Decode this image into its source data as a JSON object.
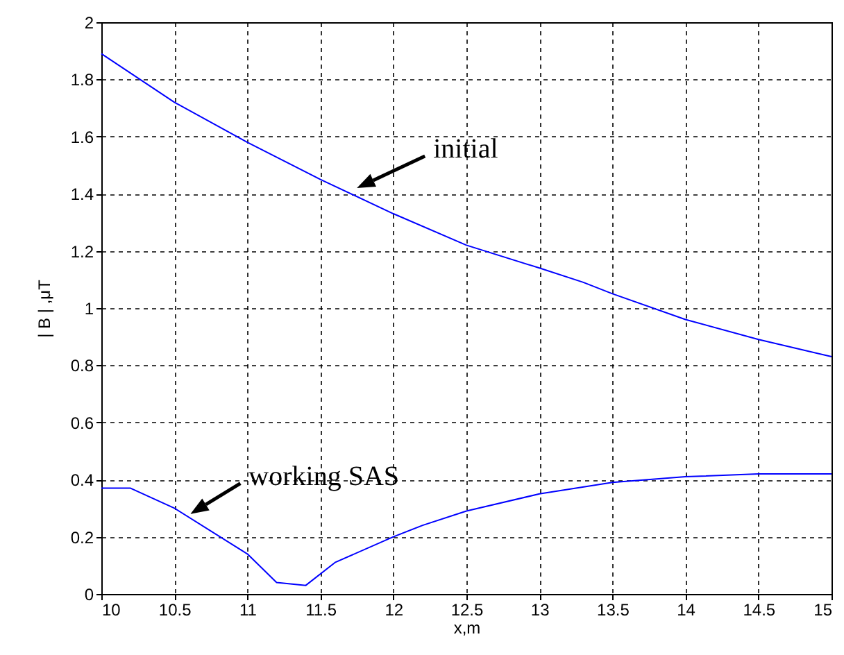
{
  "chart_data": {
    "type": "line",
    "xlabel": "x,m",
    "ylabel": "| B | ,μT",
    "xlim": [
      10,
      15
    ],
    "xticks": [
      10,
      10.5,
      11,
      11.5,
      12,
      12.5,
      13,
      13.5,
      14,
      14.5,
      15
    ],
    "ylim": [
      0,
      2
    ],
    "yticks": [
      0,
      0.2,
      0.4,
      0.6,
      0.8,
      1,
      1.2,
      1.4,
      1.6,
      1.8,
      2
    ],
    "grid": true,
    "line_style": "solid",
    "series": [
      {
        "color": "#0000ff",
        "x": [
          10,
          10.5,
          11,
          11.5,
          12,
          12.5,
          13,
          13.3,
          13.5,
          14,
          14.5,
          15
        ],
        "values": [
          1.89,
          1.72,
          1.58,
          1.45,
          1.33,
          1.22,
          1.14,
          1.09,
          1.05,
          0.96,
          0.89,
          0.83
        ]
      },
      {
        "color": "#0000ff",
        "x": [
          10,
          10.2,
          10.5,
          11,
          11.2,
          11.4,
          11.6,
          12,
          12.2,
          12.5,
          13,
          13.5,
          14,
          14.5,
          15
        ],
        "values": [
          0.37,
          0.37,
          0.3,
          0.14,
          0.04,
          0.03,
          0.11,
          0.2,
          0.24,
          0.29,
          0.35,
          0.39,
          0.41,
          0.42,
          0.42
        ]
      }
    ],
    "annotations": [
      {
        "text": "initial",
        "x": 11.75,
        "y": 1.42
      },
      {
        "text": "working SAS",
        "x": 10.61,
        "y": 0.28
      }
    ]
  }
}
